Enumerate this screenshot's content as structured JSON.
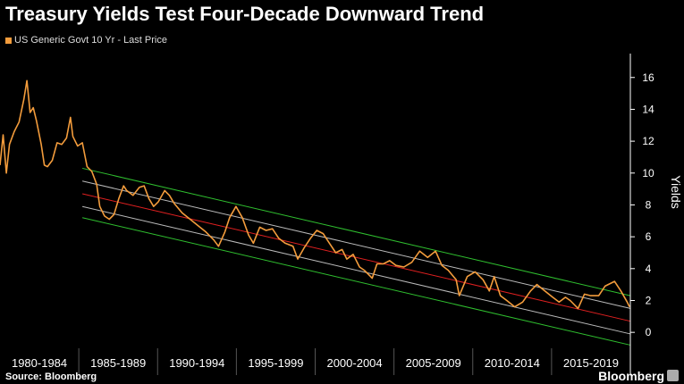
{
  "title": "Treasury Yields Test Four-Decade Downward Trend",
  "legend": {
    "label": "US Generic Govt 10 Yr - Last Price",
    "color": "#F39C3C"
  },
  "source": "Source: Bloomberg",
  "brand": "Bloomberg",
  "colors": {
    "series": "#F39C3C",
    "channel_outer": "#2FBF2F",
    "channel_mid": "#E02020",
    "channel_inner": "#BBBBBB",
    "axis": "#FFFFFF",
    "divider": "#555555"
  },
  "chart_data": {
    "type": "line",
    "title": "Treasury Yields Test Four-Decade Downward Trend",
    "xlabel": "",
    "ylabel": "Yields",
    "xlim": [
      1980,
      2019.8
    ],
    "ylim": [
      -1,
      17.5
    ],
    "y_ticks": [
      0,
      2,
      4,
      6,
      8,
      10,
      12,
      14,
      16
    ],
    "x_ticks": [
      "1980-1984",
      "1985-1989",
      "1990-1994",
      "1995-1999",
      "2000-2004",
      "2005-2009",
      "2010-2014",
      "2015-2019"
    ],
    "grid": false,
    "legend_position": "top-left",
    "series": [
      {
        "name": "US Generic Govt 10 Yr - Last Price",
        "x": [
          1980.0,
          1980.2,
          1980.4,
          1980.6,
          1980.9,
          1981.2,
          1981.5,
          1981.7,
          1981.9,
          1982.1,
          1982.3,
          1982.6,
          1982.8,
          1983.0,
          1983.3,
          1983.6,
          1983.9,
          1984.2,
          1984.45,
          1984.6,
          1984.9,
          1985.2,
          1985.5,
          1985.8,
          1986.1,
          1986.3,
          1986.6,
          1986.9,
          1987.2,
          1987.5,
          1987.8,
          1988.0,
          1988.4,
          1988.8,
          1989.1,
          1989.4,
          1989.7,
          1990.0,
          1990.4,
          1990.7,
          1991.0,
          1991.5,
          1992.0,
          1992.5,
          1993.0,
          1993.5,
          1993.8,
          1994.2,
          1994.5,
          1994.9,
          1995.3,
          1995.7,
          1996.0,
          1996.4,
          1996.8,
          1997.2,
          1997.6,
          1998.0,
          1998.5,
          1998.8,
          1999.2,
          1999.6,
          2000.0,
          2000.4,
          2000.8,
          2001.2,
          2001.6,
          2001.9,
          2002.3,
          2002.7,
          2003.0,
          2003.5,
          2003.8,
          2004.2,
          2004.6,
          2005.0,
          2005.5,
          2006.0,
          2006.5,
          2007.0,
          2007.5,
          2007.9,
          2008.3,
          2008.8,
          2009.0,
          2009.5,
          2010.0,
          2010.5,
          2010.9,
          2011.2,
          2011.6,
          2012.0,
          2012.5,
          2013.0,
          2013.5,
          2013.9,
          2014.4,
          2014.9,
          2015.3,
          2015.7,
          2016.0,
          2016.5,
          2016.9,
          2017.3,
          2017.8,
          2018.2,
          2018.8,
          2019.2,
          2019.6,
          2019.75
        ],
        "y": [
          10.5,
          12.4,
          10.0,
          11.8,
          12.6,
          13.2,
          14.6,
          15.8,
          13.8,
          14.1,
          13.3,
          11.8,
          10.5,
          10.4,
          10.8,
          11.9,
          11.8,
          12.2,
          13.5,
          12.3,
          11.7,
          11.9,
          10.4,
          10.1,
          9.3,
          7.9,
          7.3,
          7.1,
          7.4,
          8.4,
          9.2,
          8.9,
          8.6,
          9.1,
          9.2,
          8.4,
          7.9,
          8.2,
          8.9,
          8.6,
          8.1,
          7.5,
          7.1,
          6.7,
          6.3,
          5.8,
          5.4,
          6.3,
          7.2,
          7.9,
          7.2,
          6.1,
          5.6,
          6.6,
          6.4,
          6.5,
          5.9,
          5.6,
          5.4,
          4.6,
          5.3,
          5.9,
          6.4,
          6.2,
          5.6,
          5.0,
          5.2,
          4.6,
          4.9,
          4.1,
          3.9,
          3.4,
          4.3,
          4.3,
          4.5,
          4.2,
          4.1,
          4.4,
          5.1,
          4.7,
          5.1,
          4.2,
          3.9,
          3.3,
          2.3,
          3.5,
          3.8,
          3.3,
          2.6,
          3.5,
          2.3,
          2.0,
          1.6,
          1.9,
          2.6,
          3.0,
          2.6,
          2.2,
          1.9,
          2.2,
          2.0,
          1.5,
          2.4,
          2.3,
          2.3,
          2.9,
          3.2,
          2.6,
          1.9,
          1.6
        ]
      }
    ],
    "trend_lines": [
      {
        "name": "upper channel",
        "color": "#2FBF2F",
        "x": [
          1985.2,
          2019.8
        ],
        "y": [
          10.3,
          2.3
        ]
      },
      {
        "name": "upper-mid",
        "color": "#BBBBBB",
        "x": [
          1985.2,
          2019.8
        ],
        "y": [
          9.5,
          1.5
        ]
      },
      {
        "name": "mid",
        "color": "#E02020",
        "x": [
          1985.2,
          2019.8
        ],
        "y": [
          8.7,
          0.7
        ]
      },
      {
        "name": "lower-mid",
        "color": "#BBBBBB",
        "x": [
          1985.2,
          2019.8
        ],
        "y": [
          7.9,
          -0.1
        ]
      },
      {
        "name": "lower channel",
        "color": "#2FBF2F",
        "x": [
          1985.2,
          2019.8
        ],
        "y": [
          7.2,
          -0.8
        ]
      }
    ]
  }
}
